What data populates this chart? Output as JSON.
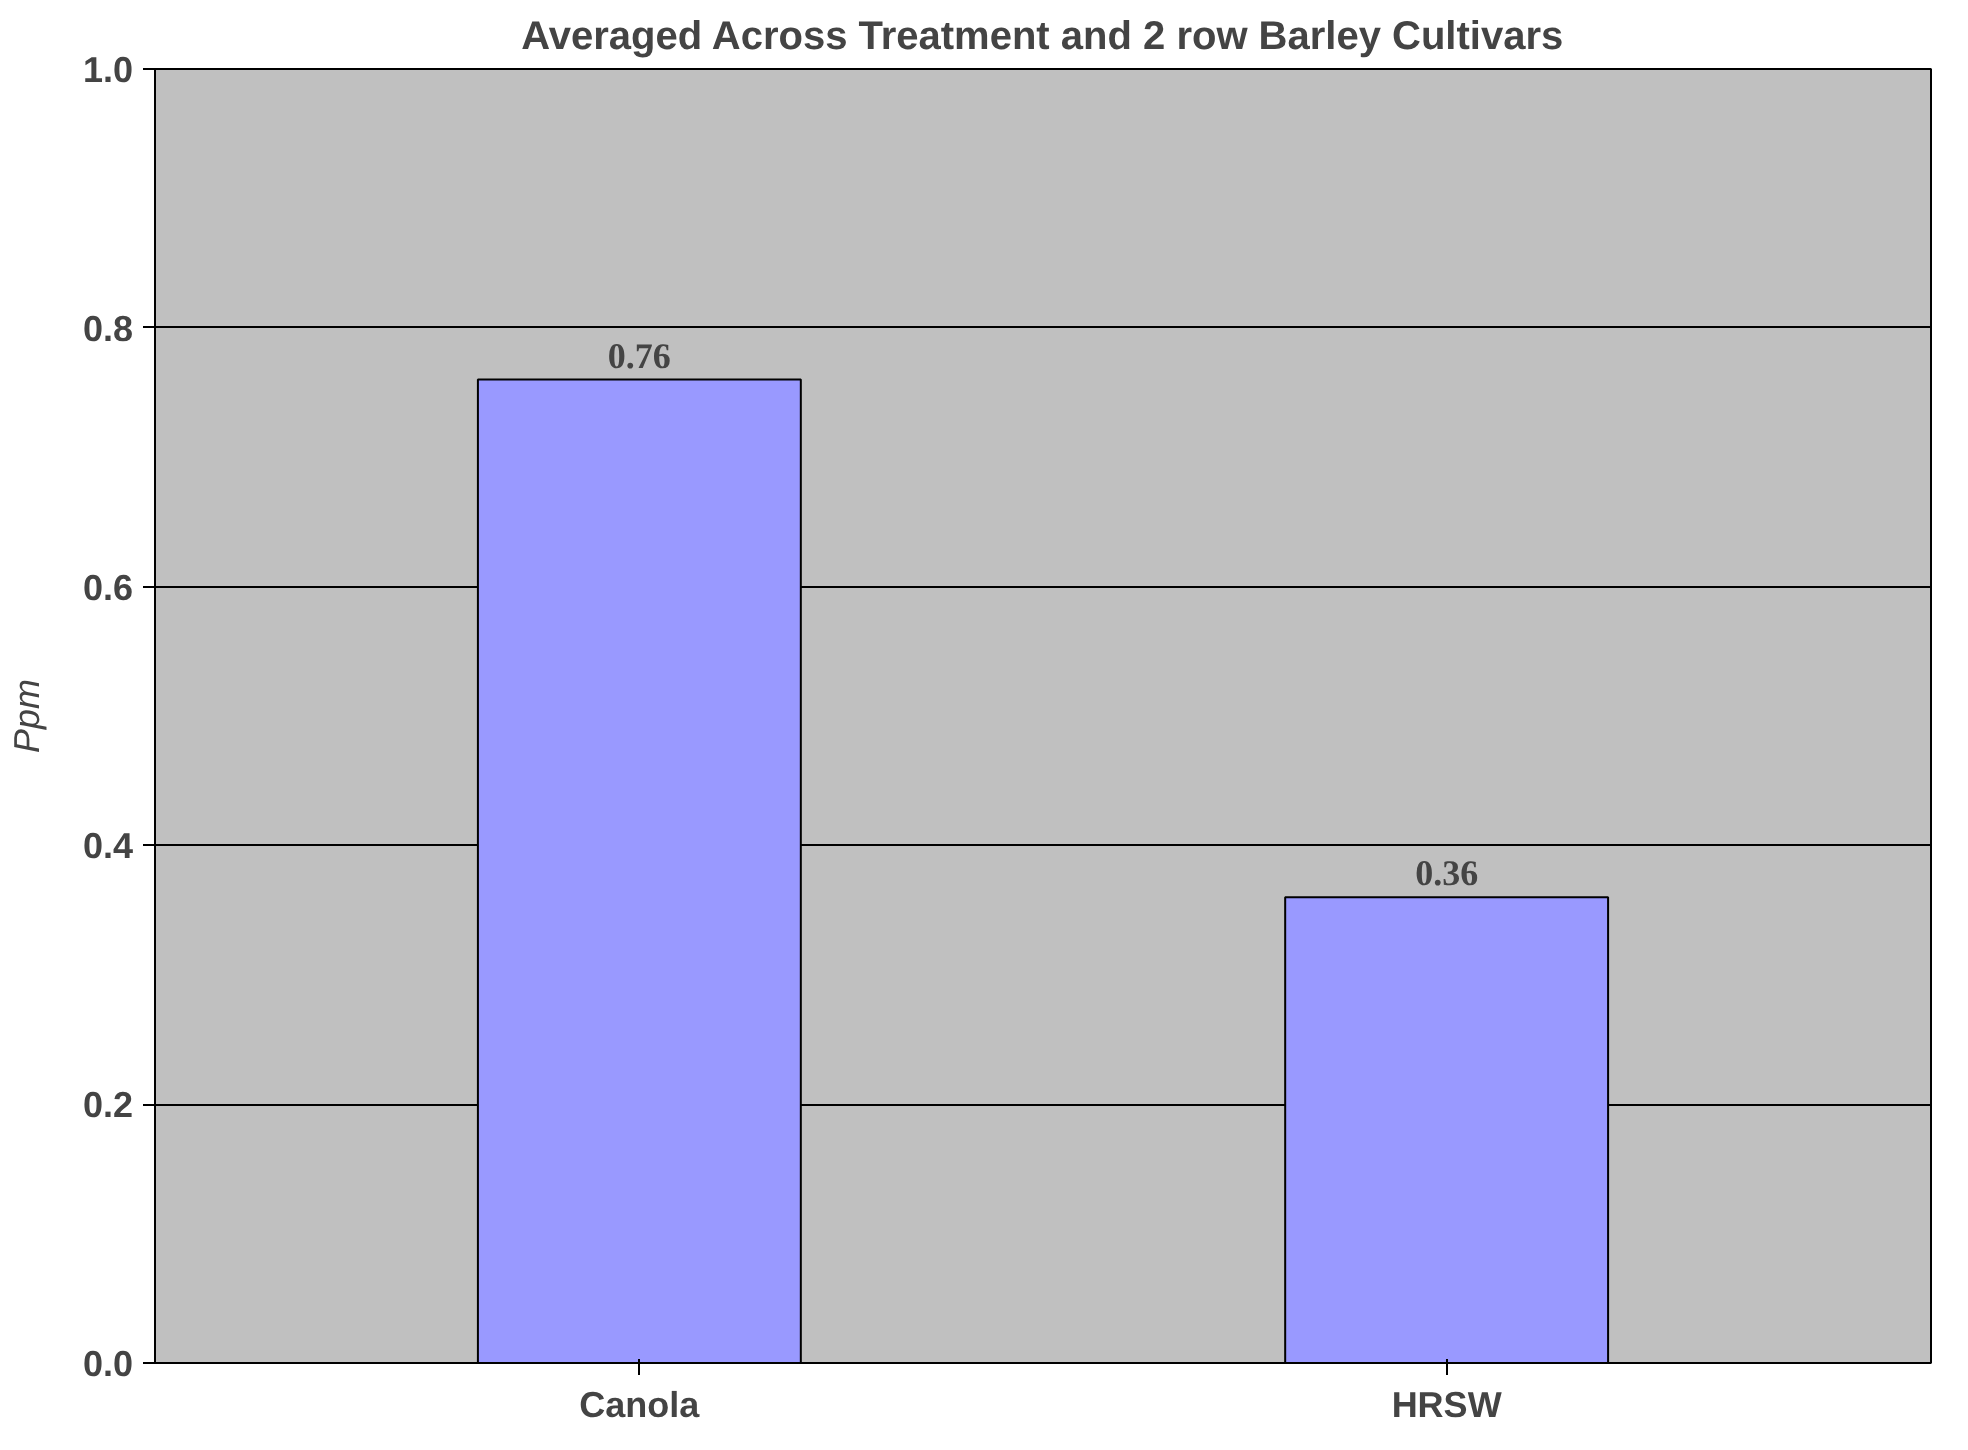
{
  "chart_data": {
    "type": "bar",
    "title": "Averaged Across Treatment and 2 row Barley Cultivars",
    "ylabel": "Ppm",
    "categories": [
      "Canola",
      "HRSW"
    ],
    "values": [
      0.76,
      0.36
    ],
    "color": "#9999ff",
    "ylim": [
      0,
      1
    ],
    "yticks": [
      {
        "value": 0,
        "label": "0.0"
      },
      {
        "value": 0.2,
        "label": "0.2"
      },
      {
        "value": 0.4,
        "label": "0.4"
      },
      {
        "value": 0.6,
        "label": "0.6"
      },
      {
        "value": 0.8,
        "label": "0.8"
      },
      {
        "value": 1,
        "label": "1.0"
      }
    ],
    "grid": "y",
    "data_labels": true
  }
}
